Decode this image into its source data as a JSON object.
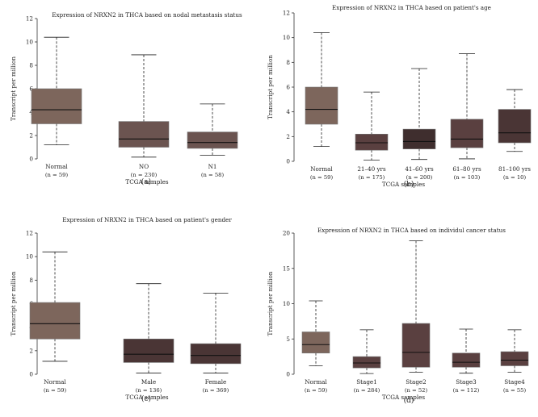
{
  "chart_data": [
    {
      "type": "box",
      "panel_label": "(a)",
      "title": "Expression of NRXN2 in THCA based on nodal metastasis status",
      "ylabel": "Transcript per million",
      "xlabel": "TCGA samples",
      "ylim": [
        0,
        12
      ],
      "yticks": [
        0,
        2,
        4,
        6,
        8,
        10,
        12
      ],
      "categories": [
        {
          "name": "Normal",
          "n": "(n = 59)",
          "min": 1.2,
          "q1": 3.0,
          "median": 4.2,
          "q3": 6.0,
          "max": 10.4,
          "color": "#7d665c"
        },
        {
          "name": "NO",
          "n": "(n = 230)",
          "min": 0.15,
          "q1": 1.0,
          "median": 1.7,
          "q3": 3.2,
          "max": 8.9,
          "color": "#6b5450"
        },
        {
          "name": "N1",
          "n": "(n = 58)",
          "min": 0.3,
          "q1": 0.9,
          "median": 1.4,
          "q3": 2.3,
          "max": 4.7,
          "color": "#6b5450"
        }
      ]
    },
    {
      "type": "box",
      "panel_label": "(b)",
      "title": "Expression of NRXN2 in THCA based on patient's age",
      "ylabel": "Transcript per million",
      "xlabel": "TCGA samples",
      "ylim": [
        0,
        12
      ],
      "yticks": [
        0,
        2,
        4,
        6,
        8,
        10,
        12
      ],
      "categories": [
        {
          "name": "Normal",
          "n": "(n = 59)",
          "min": 1.2,
          "q1": 3.0,
          "median": 4.2,
          "q3": 6.0,
          "max": 10.4,
          "color": "#7d665c"
        },
        {
          "name": "21–40 yrs",
          "n": "(n = 175)",
          "min": 0.1,
          "q1": 0.9,
          "median": 1.5,
          "q3": 2.2,
          "max": 5.6,
          "color": "#5a4040"
        },
        {
          "name": "41–60 yrs",
          "n": "(n = 200)",
          "min": 0.15,
          "q1": 1.0,
          "median": 1.6,
          "q3": 2.6,
          "max": 7.5,
          "color": "#3f2e2e"
        },
        {
          "name": "61–80 yrs",
          "n": "(n = 103)",
          "min": 0.2,
          "q1": 1.1,
          "median": 1.8,
          "q3": 3.4,
          "max": 8.7,
          "color": "#5a4040"
        },
        {
          "name": "81–100 yrs",
          "n": "(n = 10)",
          "min": 0.8,
          "q1": 1.5,
          "median": 2.3,
          "q3": 4.2,
          "max": 5.8,
          "color": "#4a3535"
        }
      ]
    },
    {
      "type": "box",
      "panel_label": "(c)",
      "title": "Expression of NRXN2 in THCA based on patient's gender",
      "ylabel": "Transcript per million",
      "xlabel": "TCGA samples",
      "ylim": [
        0,
        12
      ],
      "yticks": [
        0,
        2,
        4,
        6,
        8,
        10,
        12
      ],
      "categories": [
        {
          "name": "Normal",
          "n": "(n = 59)",
          "min": 1.1,
          "q1": 3.0,
          "median": 4.3,
          "q3": 6.1,
          "max": 10.4,
          "color": "#7d665c"
        },
        {
          "name": "Male",
          "n": "(n = 136)",
          "min": 0.1,
          "q1": 1.0,
          "median": 1.7,
          "q3": 3.0,
          "max": 7.7,
          "color": "#4a3535"
        },
        {
          "name": "Female",
          "n": "(n = 369)",
          "min": 0.1,
          "q1": 0.9,
          "median": 1.6,
          "q3": 2.6,
          "max": 6.9,
          "color": "#4a3535"
        }
      ]
    },
    {
      "type": "box",
      "panel_label": "(d)",
      "title": "Expression of NRXN2 in THCA based on individul cancer status",
      "ylabel": "Transcript per million",
      "xlabel": "TCGA samples",
      "ylim": [
        0,
        20
      ],
      "yticks": [
        0,
        5,
        10,
        15,
        20
      ],
      "categories": [
        {
          "name": "Normal",
          "n": "(n = 59)",
          "min": 1.2,
          "q1": 3.0,
          "median": 4.2,
          "q3": 6.0,
          "max": 10.4,
          "color": "#7d665c"
        },
        {
          "name": "Stage1",
          "n": "(n = 284)",
          "min": 0.1,
          "q1": 0.9,
          "median": 1.6,
          "q3": 2.5,
          "max": 6.3,
          "color": "#5a4040"
        },
        {
          "name": "Stage2",
          "n": "(n = 52)",
          "min": 0.3,
          "q1": 1.0,
          "median": 3.1,
          "q3": 7.2,
          "max": 18.9,
          "color": "#5a4040"
        },
        {
          "name": "Stage3",
          "n": "(n = 112)",
          "min": 0.15,
          "q1": 1.0,
          "median": 1.7,
          "q3": 3.0,
          "max": 6.4,
          "color": "#5a4040"
        },
        {
          "name": "Stage4",
          "n": "(n = 55)",
          "min": 0.3,
          "q1": 1.2,
          "median": 2.0,
          "q3": 3.2,
          "max": 6.3,
          "color": "#5a4040"
        }
      ]
    }
  ]
}
